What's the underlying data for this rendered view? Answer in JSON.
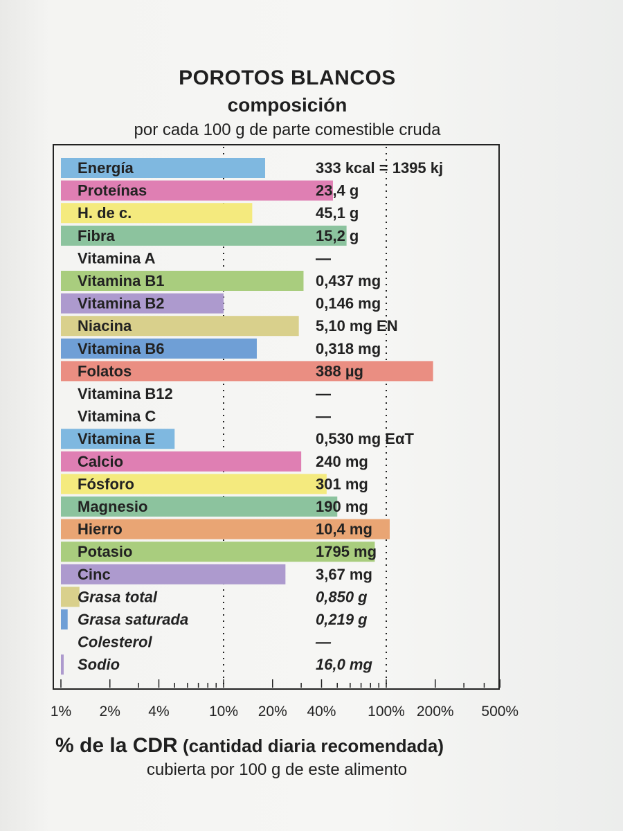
{
  "header": {
    "title": "POROTOS BLANCOS",
    "subtitle": "composición",
    "note": "por cada 100 g de parte comestible cruda"
  },
  "footer": {
    "line1_main": "% de la CDR",
    "line1_rest": "(cantidad diaria recomendada)",
    "line2": "cubierta por 100 g de este alimento"
  },
  "chart_data": {
    "type": "bar",
    "orientation": "horizontal",
    "x_scale": "log",
    "xlim": [
      1,
      500
    ],
    "x_ticks": [
      "1%",
      "2%",
      "4%",
      "10%",
      "20%",
      "40%",
      "100%",
      "200%",
      "500%"
    ],
    "x_tick_values": [
      1,
      2,
      4,
      10,
      20,
      40,
      100,
      200,
      500
    ],
    "dotted_gridlines_at": [
      10,
      100
    ],
    "categories": [
      "Energía",
      "Proteínas",
      "H. de c.",
      "Fibra",
      "Vitamina A",
      "Vitamina B1",
      "Vitamina B2",
      "Niacina",
      "Vitamina B6",
      "Folatos",
      "Vitamina B12",
      "Vitamina C",
      "Vitamina E",
      "Calcio",
      "Fósforo",
      "Magnesio",
      "Hierro",
      "Potasio",
      "Cinc",
      "Grasa total",
      "Grasa saturada",
      "Colesterol",
      "Sodio"
    ],
    "values": [
      18,
      47,
      15,
      57,
      null,
      31,
      10,
      29,
      16,
      194,
      null,
      null,
      5,
      30,
      43,
      50,
      105,
      85,
      24,
      1.3,
      1.1,
      null,
      1.0
    ],
    "value_labels": [
      "333 kcal = 1395 kj",
      "23,4 g",
      "45,1 g",
      "15,2 g",
      "—",
      "0,437 mg",
      "0,146 mg",
      "5,10 mg EN",
      "0,318 mg",
      "388 µg",
      "—",
      "—",
      "0,530 mg EαT",
      "240 mg",
      "301 mg",
      "190 mg",
      "10,4 mg",
      "1795 mg",
      "3,67 mg",
      "0,850 g",
      "0,219 g",
      "—",
      "16,0 mg"
    ],
    "colors": [
      "#7fb8e0",
      "#df7fb3",
      "#f4ea7e",
      "#8cc39e",
      "#ffffff",
      "#a9cd7e",
      "#ad9ace",
      "#d9d08c",
      "#6f9fd6",
      "#ea8e82",
      "#ffffff",
      "#ffffff",
      "#7fb8e0",
      "#df7fb3",
      "#f4ea7e",
      "#8cc39e",
      "#e9a574",
      "#a9cd7e",
      "#ad9ace",
      "#d9d08c",
      "#6f9fd6",
      "#ffffff",
      "#ad9ace"
    ],
    "italic_rows": [
      "Grasa total",
      "Grasa saturada",
      "Colesterol",
      "Sodio"
    ]
  }
}
